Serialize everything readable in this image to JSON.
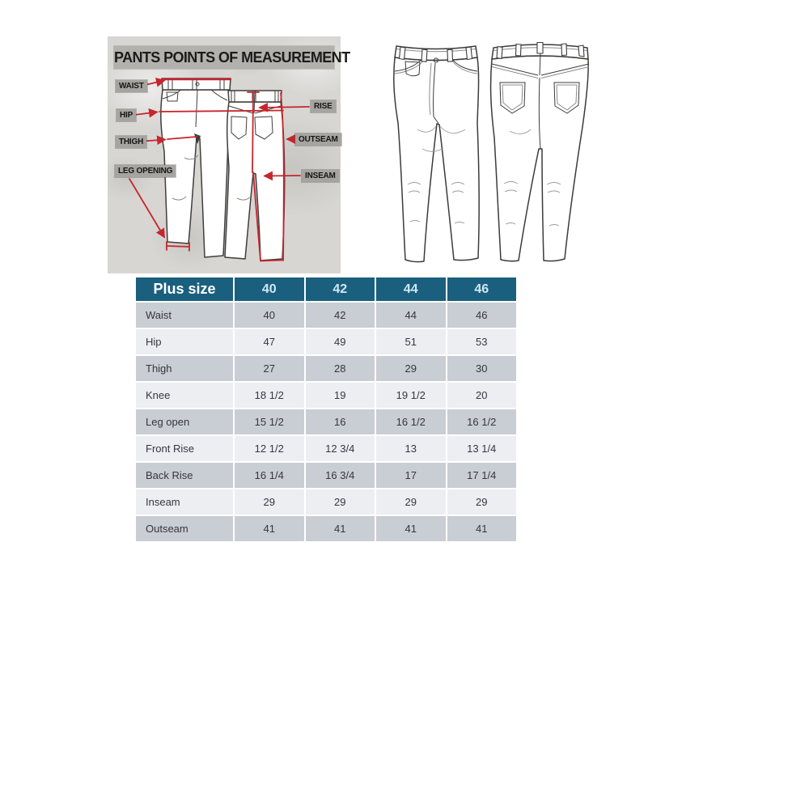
{
  "diagram": {
    "title": "PANTS POINTS OF MEASUREMENT",
    "labels": {
      "waist": "WAIST",
      "hip": "HIP",
      "thigh": "THIGH",
      "leg_opening": "LEG OPENING",
      "rise": "RISE",
      "outseam": "OUTSEAM",
      "inseam": "INSEAM"
    },
    "accent_color": "#c8252c"
  },
  "size_chart": {
    "title": "Plus size",
    "sizes": [
      "40",
      "42",
      "44",
      "46"
    ],
    "rows": [
      {
        "label": "Waist",
        "values": [
          "40",
          "42",
          "44",
          "46"
        ]
      },
      {
        "label": "Hip",
        "values": [
          "47",
          "49",
          "51",
          "53"
        ]
      },
      {
        "label": "Thigh",
        "values": [
          "27",
          "28",
          "29",
          "30"
        ]
      },
      {
        "label": "Knee",
        "values": [
          "18 1/2",
          "19",
          "19 1/2",
          "20"
        ]
      },
      {
        "label": "Leg open",
        "values": [
          "15 1/2",
          "16",
          "16 1/2",
          "16 1/2"
        ]
      },
      {
        "label": "Front Rise",
        "values": [
          "12 1/2",
          "12 3/4",
          "13",
          "13 1/4"
        ]
      },
      {
        "label": "Back Rise",
        "values": [
          "16 1/4",
          "16 3/4",
          "17",
          "17 1/4"
        ]
      },
      {
        "label": "Inseam",
        "values": [
          "29",
          "29",
          "29",
          "29"
        ]
      },
      {
        "label": "Outseam",
        "values": [
          "41",
          "41",
          "41",
          "41"
        ]
      }
    ],
    "colors": {
      "header_bg": "#1a5f7e",
      "header_text": "#ffffff",
      "size_text": "#cfe9f2",
      "row_dark": "#c9cdd4",
      "row_light": "#edeef2"
    }
  }
}
